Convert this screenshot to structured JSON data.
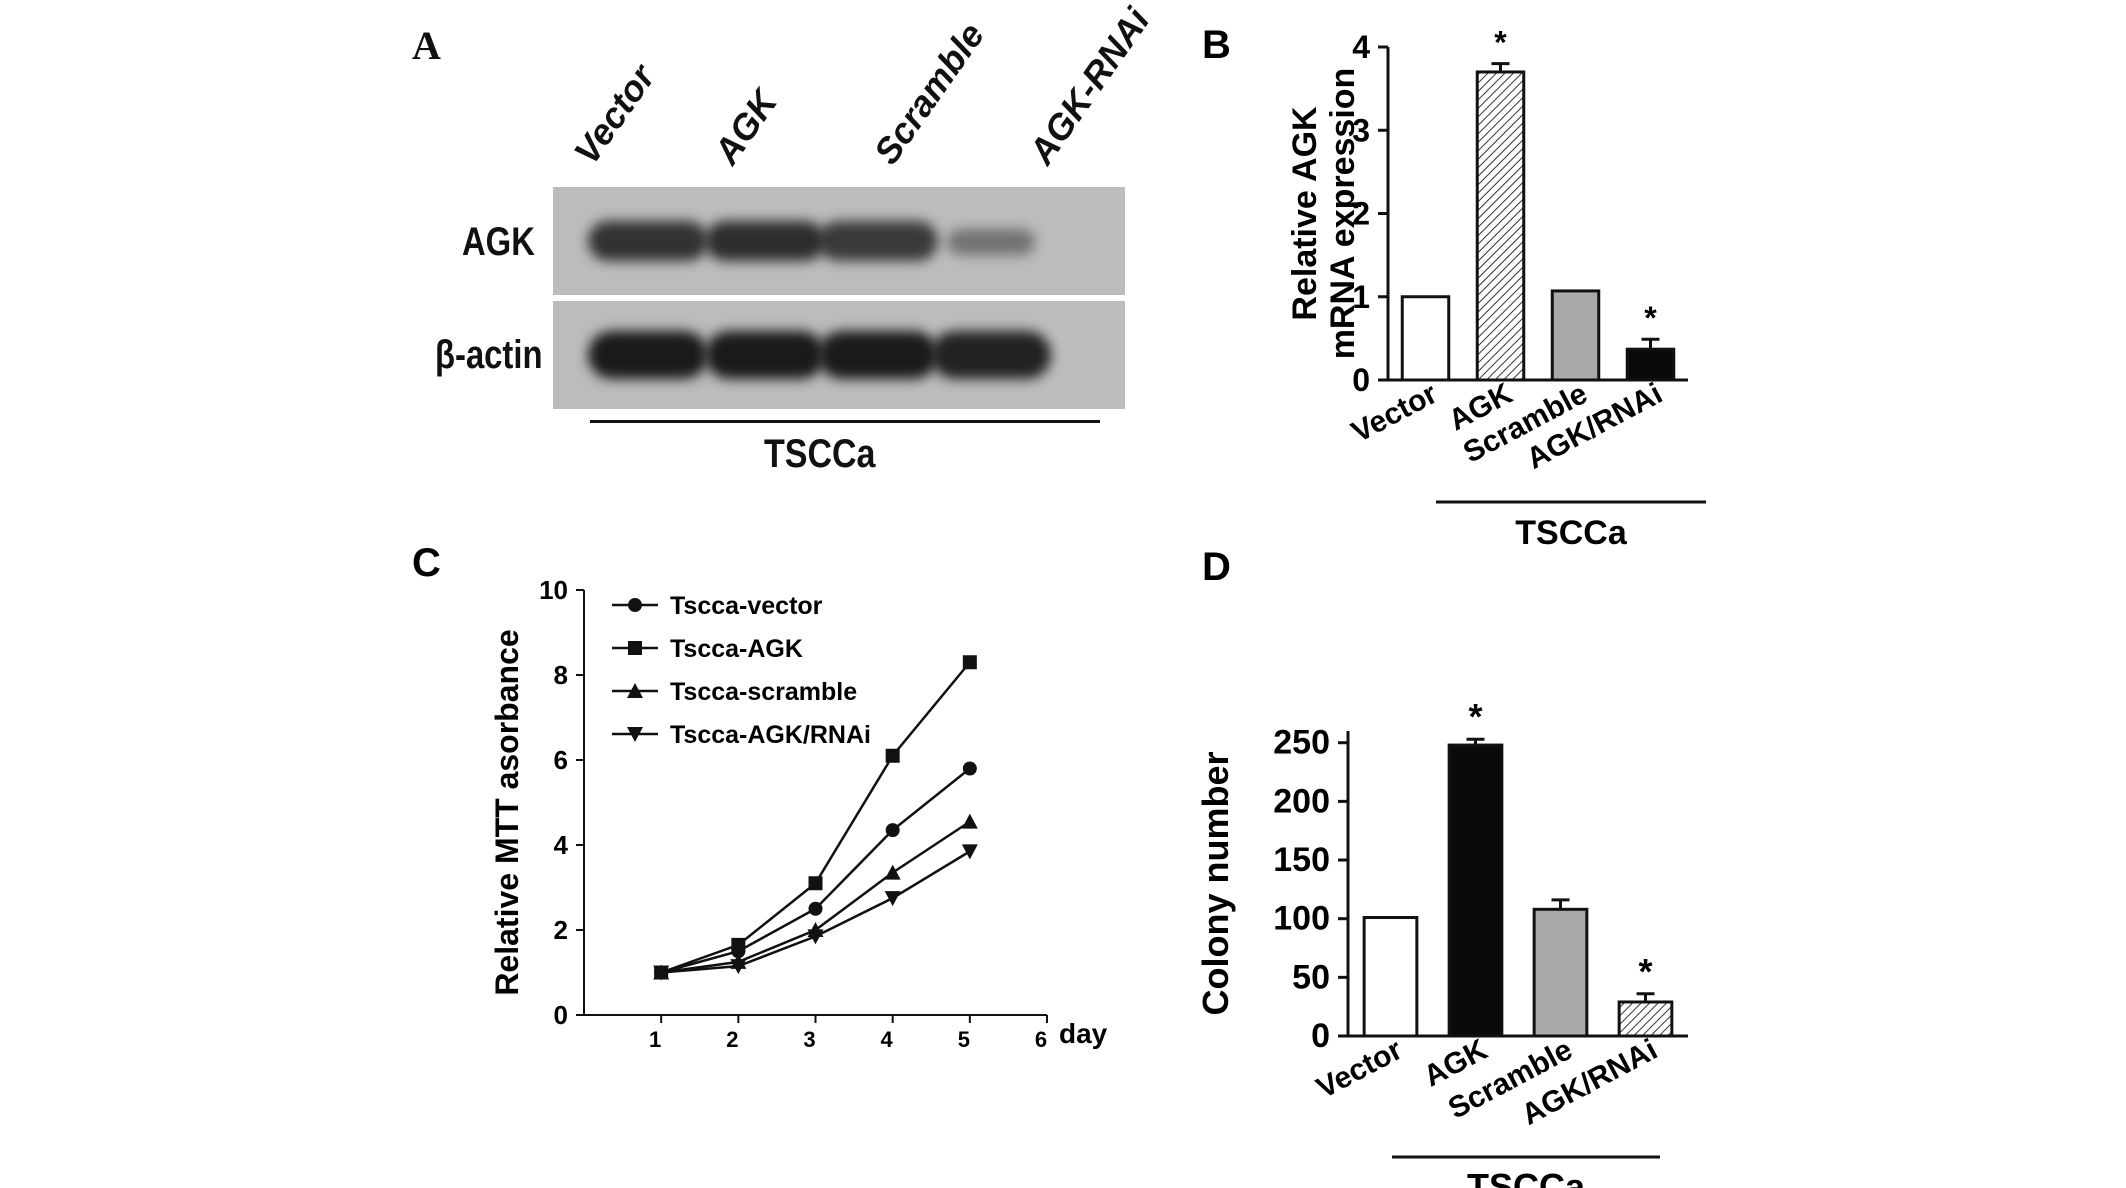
{
  "panels": {
    "A": {
      "letter": "A",
      "lanes": [
        "Vector",
        "AGK",
        "Scramble",
        "AGK-RNAi"
      ],
      "rows": [
        "AGK",
        "β-actin"
      ],
      "group_label": "TSCCa",
      "band_intensity": {
        "AGK": [
          0.85,
          0.88,
          0.8,
          0.45
        ],
        "β-actin": [
          1.0,
          1.0,
          1.0,
          0.95
        ]
      }
    },
    "B": {
      "letter": "B",
      "group_label": "TSCCa"
    },
    "C": {
      "letter": "C",
      "x_unit_label": "day"
    },
    "D": {
      "letter": "D",
      "group_label": "TSCCa"
    }
  },
  "colors": {
    "ink": "#111111",
    "blot_background": "#bcbcbc",
    "band": "#1a1a1a",
    "bar_white": "#ffffff",
    "bar_gray": "#a9a9a9",
    "bar_black": "#0a0a0a",
    "hatch_fill": "#d0d0d0"
  },
  "chart_data": [
    {
      "panel": "B",
      "type": "bar",
      "categories": [
        "Vector",
        "AGK",
        "Scramble",
        "AGK/RNAi"
      ],
      "values": [
        1.0,
        3.7,
        1.07,
        0.37
      ],
      "errors": [
        0,
        0.1,
        0,
        0.12
      ],
      "fills": [
        "white",
        "hatch",
        "gray",
        "black"
      ],
      "significance": [
        "",
        "*",
        "",
        "*"
      ],
      "ylabel": "Relative AGK\nmRNA expression",
      "ylim": [
        0,
        4
      ],
      "yticks": [
        0,
        1,
        2,
        3,
        4
      ],
      "group_label": "TSCCa"
    },
    {
      "panel": "C",
      "type": "line",
      "x": [
        1,
        2,
        3,
        4,
        5
      ],
      "xticks": [
        1,
        2,
        3,
        4,
        5,
        6
      ],
      "xlim": [
        0,
        6
      ],
      "ylim": [
        0,
        10
      ],
      "yticks": [
        0,
        2,
        4,
        6,
        8,
        10
      ],
      "ylabel": "Relative MTT asorbance",
      "xlabel": "day",
      "legend_position": "top-left",
      "series": [
        {
          "name": "Tscca-vector",
          "marker": "circle",
          "values": [
            1.0,
            1.5,
            2.5,
            4.35,
            5.8
          ]
        },
        {
          "name": "Tscca-AGK",
          "marker": "square",
          "values": [
            1.0,
            1.65,
            3.1,
            6.1,
            8.3
          ]
        },
        {
          "name": "Tscca-scramble",
          "marker": "triangle-up",
          "values": [
            1.0,
            1.25,
            2.0,
            3.35,
            4.55
          ]
        },
        {
          "name": "Tscca-AGK/RNAi",
          "marker": "triangle-down",
          "values": [
            1.0,
            1.15,
            1.85,
            2.75,
            3.85
          ]
        }
      ]
    },
    {
      "panel": "D",
      "type": "bar",
      "categories": [
        "Vector",
        "AGK",
        "Scramble",
        "AGK/RNAi"
      ],
      "values": [
        101,
        248,
        108,
        29
      ],
      "errors": [
        0,
        5,
        8,
        7
      ],
      "fills": [
        "white",
        "black",
        "gray",
        "hatch"
      ],
      "significance": [
        "",
        "*",
        "",
        "*"
      ],
      "ylabel": "Colony number",
      "ylim": [
        0,
        260
      ],
      "yticks": [
        0,
        50,
        100,
        150,
        200,
        250
      ],
      "group_label": "TSCCa"
    }
  ]
}
